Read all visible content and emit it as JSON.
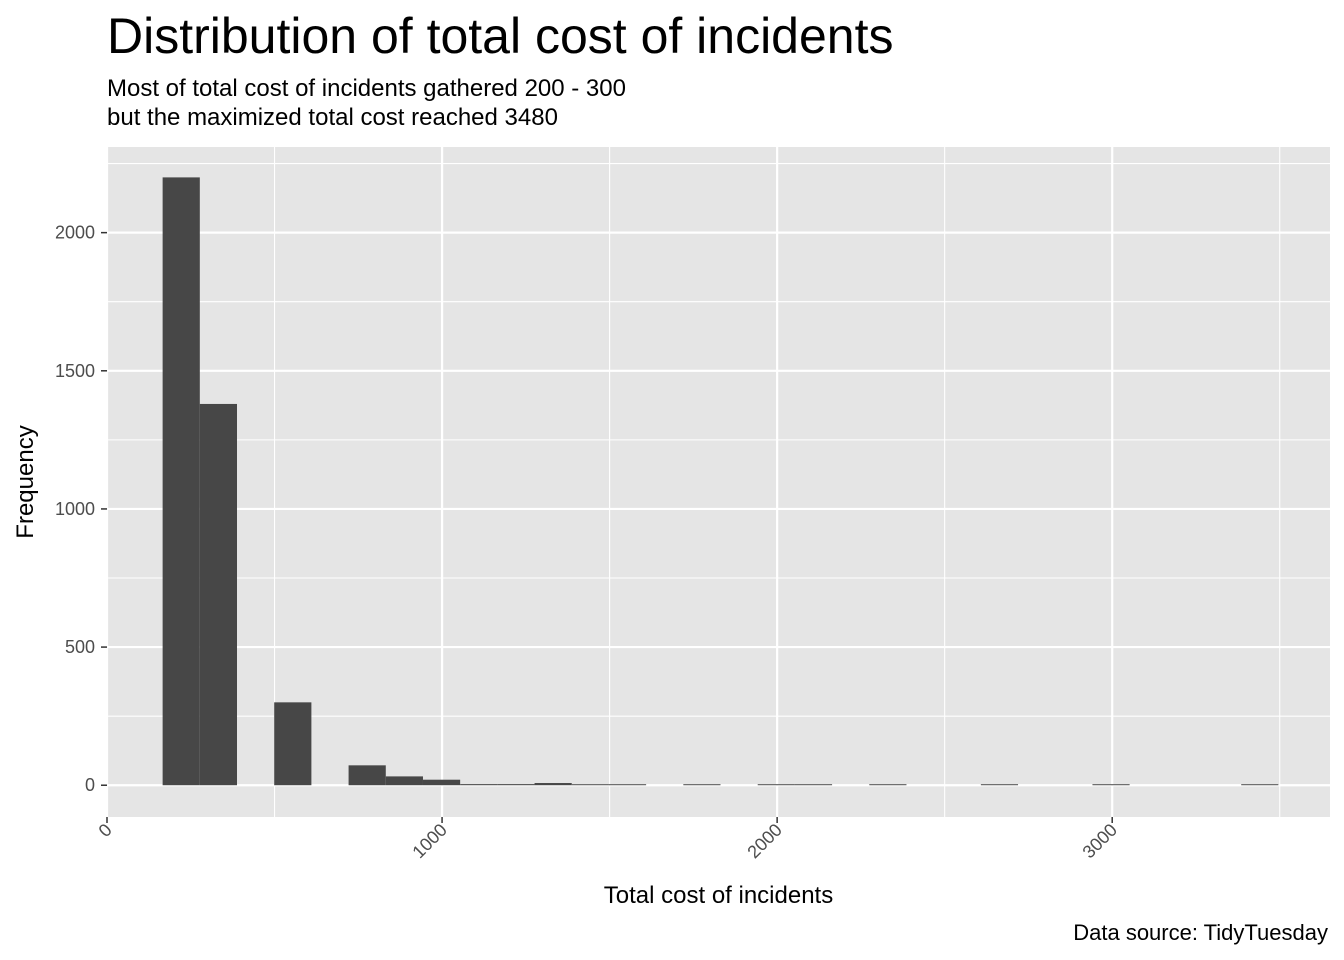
{
  "chart_data": {
    "type": "bar",
    "title": "Distribution of total cost of incidents",
    "subtitle": [
      "Most of total cost of incidents gathered 200 - 300",
      "but the maximized total cost reached 3480"
    ],
    "xlabel": "Total cost of incidents",
    "ylabel": "Frequency",
    "caption": "Data source: TidyTuesday",
    "xlim": [
      0,
      3650
    ],
    "ylim": [
      -115,
      2310
    ],
    "x_ticks": [
      0,
      1000,
      2000,
      3000
    ],
    "x_tick_labels": [
      "0",
      "1000",
      "2000",
      "3000"
    ],
    "y_ticks": [
      0,
      500,
      1000,
      1500,
      2000
    ],
    "y_tick_labels": [
      "0",
      "500",
      "1000",
      "1500",
      "2000"
    ],
    "grid": true,
    "bin_width": 111,
    "bins": [
      {
        "x0": 166,
        "x1": 277,
        "count": 2200
      },
      {
        "x0": 277,
        "x1": 388,
        "count": 1380
      },
      {
        "x0": 499,
        "x1": 610,
        "count": 300
      },
      {
        "x0": 721,
        "x1": 832,
        "count": 72
      },
      {
        "x0": 832,
        "x1": 943,
        "count": 32
      },
      {
        "x0": 943,
        "x1": 1054,
        "count": 20
      },
      {
        "x0": 1054,
        "x1": 1165,
        "count": 4
      },
      {
        "x0": 1165,
        "x1": 1276,
        "count": 4
      },
      {
        "x0": 1276,
        "x1": 1387,
        "count": 8
      },
      {
        "x0": 1387,
        "x1": 1498,
        "count": 3
      },
      {
        "x0": 1498,
        "x1": 1609,
        "count": 2
      },
      {
        "x0": 1720,
        "x1": 1831,
        "count": 3
      },
      {
        "x0": 1942,
        "x1": 2053,
        "count": 2
      },
      {
        "x0": 2053,
        "x1": 2164,
        "count": 2
      },
      {
        "x0": 2275,
        "x1": 2386,
        "count": 3
      },
      {
        "x0": 2608,
        "x1": 2719,
        "count": 1
      },
      {
        "x0": 2941,
        "x1": 3052,
        "count": 1
      },
      {
        "x0": 3385,
        "x1": 3496,
        "count": 1
      }
    ],
    "colors": {
      "panel": "#e5e5e5",
      "grid": "#ffffff",
      "bar": "#474747"
    }
  }
}
